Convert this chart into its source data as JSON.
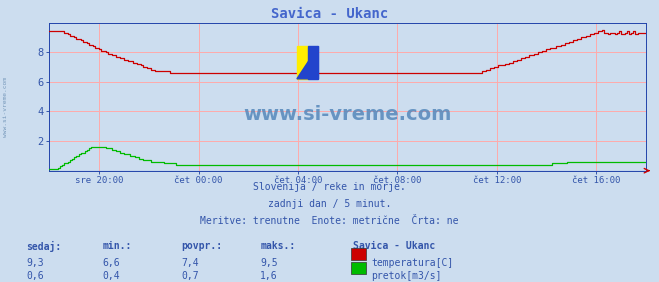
{
  "title": "Savica - Ukanc",
  "title_color": "#4466cc",
  "bg_color": "#ccddef",
  "plot_bg_color": "#ccddef",
  "grid_color": "#ffaaaa",
  "axis_color": "#2244aa",
  "text_color": "#3355aa",
  "watermark": "www.si-vreme.com",
  "watermark_color": "#5588bb",
  "subtitle_lines": [
    "Slovenija / reke in morje.",
    "zadnji dan / 5 minut.",
    "Meritve: trenutne  Enote: metrične  Črta: ne"
  ],
  "x_tick_labels": [
    "sre 20:00",
    "čet 00:00",
    "čet 04:00",
    "čet 08:00",
    "čet 12:00",
    "čet 16:00"
  ],
  "x_tick_positions": [
    0.083,
    0.25,
    0.417,
    0.583,
    0.75,
    0.917
  ],
  "ylim": [
    0,
    10
  ],
  "y_ticks": [
    2,
    4,
    6,
    8
  ],
  "legend_title": "Savica - Ukanc",
  "legend_entries": [
    {
      "label": "temperatura[C]",
      "color": "#cc0000"
    },
    {
      "label": "pretok[m3/s]",
      "color": "#00bb00"
    }
  ],
  "stats": {
    "headers": [
      "sedaj:",
      "min.:",
      "povpr.:",
      "maks.:"
    ],
    "rows": [
      [
        "9,3",
        "6,6",
        "7,4",
        "9,5"
      ],
      [
        "0,6",
        "0,4",
        "0,7",
        "1,6"
      ]
    ]
  },
  "temp_color": "#cc0000",
  "flow_color": "#00bb00",
  "baseline_color": "#2244bb",
  "arrow_color": "#cc0000",
  "left_label_color": "#7799bb"
}
